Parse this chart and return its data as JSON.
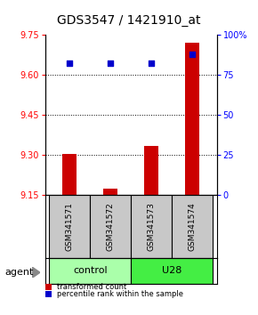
{
  "title": "GDS3547 / 1421910_at",
  "samples": [
    "GSM341571",
    "GSM341572",
    "GSM341573",
    "GSM341574"
  ],
  "bar_values": [
    9.305,
    9.175,
    9.335,
    9.72
  ],
  "percentile_values": [
    82,
    82,
    82,
    88
  ],
  "ylim_left": [
    9.15,
    9.75
  ],
  "ylim_right": [
    0,
    100
  ],
  "yticks_left": [
    9.15,
    9.3,
    9.45,
    9.6,
    9.75
  ],
  "yticks_right": [
    0,
    25,
    50,
    75,
    100
  ],
  "ytick_labels_right": [
    "0",
    "25",
    "50",
    "75",
    "100%"
  ],
  "bar_color": "#cc0000",
  "percentile_color": "#0000cc",
  "bar_bottom": 9.15,
  "grid_yticks": [
    9.3,
    9.45,
    9.6
  ],
  "group_control_color": "#aaffaa",
  "group_u28_color": "#44ee44",
  "sample_box_color": "#c8c8c8",
  "legend_items": [
    {
      "label": "transformed count",
      "color": "#cc0000"
    },
    {
      "label": "percentile rank within the sample",
      "color": "#0000cc"
    }
  ],
  "title_fontsize": 10,
  "tick_fontsize": 7,
  "sample_label_fontsize": 6.5,
  "group_label_fontsize": 8,
  "legend_fontsize": 6,
  "agent_fontsize": 8
}
